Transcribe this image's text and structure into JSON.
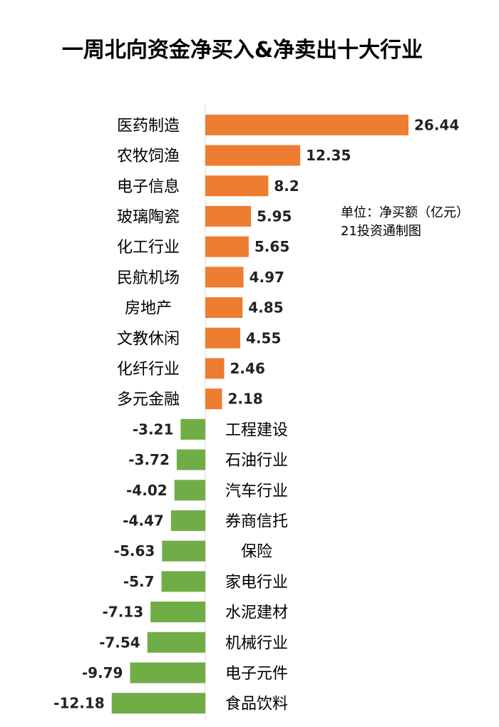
{
  "chart_data": {
    "type": "bar",
    "orientation": "horizontal",
    "title": "一周北向资金净买入&净卖出十大行业",
    "unit_note": "单位：净买额（亿元）",
    "source_note": "21投资通制图",
    "categories": [
      "医药制造",
      "农牧饲渔",
      "电子信息",
      "玻璃陶瓷",
      "化工行业",
      "民航机场",
      "房地产",
      "文教休闲",
      "化纤行业",
      "多元金融",
      "工程建设",
      "石油行业",
      "汽车行业",
      "券商信托",
      "保险",
      "家电行业",
      "水泥建材",
      "机械行业",
      "电子元件",
      "食品饮料"
    ],
    "values": [
      26.44,
      12.35,
      8.2,
      5.95,
      5.65,
      4.97,
      4.85,
      4.55,
      2.46,
      2.18,
      -3.21,
      -3.72,
      -4.02,
      -4.47,
      -5.63,
      -5.7,
      -7.13,
      -7.54,
      -9.79,
      -12.18
    ],
    "value_labels": [
      "26.44",
      "12.35",
      "8.2",
      "5.95",
      "5.65",
      "4.97",
      "4.85",
      "4.55",
      "2.46",
      "2.18",
      "-3.21",
      "-3.72",
      "-4.02",
      "-4.47",
      "-5.63",
      "-5.7",
      "-7.13",
      "-7.54",
      "-9.79",
      "-12.18"
    ],
    "xlim": [
      -12.18,
      26.44
    ],
    "grid": false,
    "legend": "none",
    "colors": {
      "positive": "#ed7d31",
      "negative": "#70ad47",
      "axis": "#d9d9d9"
    }
  }
}
